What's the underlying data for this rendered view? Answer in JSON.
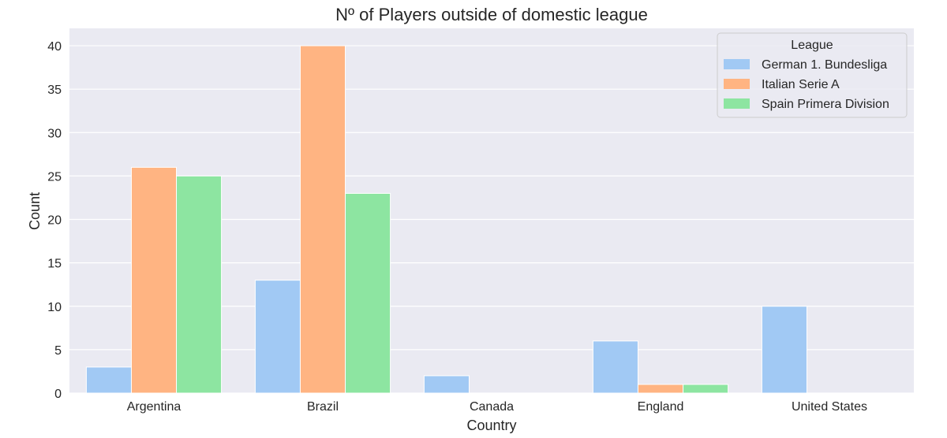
{
  "chart_data": {
    "type": "bar",
    "title": "Nº of Players outside of domestic league",
    "xlabel": "Country",
    "ylabel": "Count",
    "categories": [
      "Argentina",
      "Brazil",
      "Canada",
      "England",
      "United States"
    ],
    "series": [
      {
        "name": "German 1. Bundesliga",
        "color": "#a1c9f4",
        "values": [
          3,
          13,
          2,
          6,
          10
        ]
      },
      {
        "name": "Italian Serie A",
        "color": "#ffb482",
        "values": [
          26,
          40,
          0,
          1,
          0
        ]
      },
      {
        "name": "Spain Primera Division",
        "color": "#8de5a1",
        "values": [
          25,
          23,
          0,
          1,
          0
        ]
      }
    ],
    "ylim": [
      0,
      42
    ],
    "yticks": [
      0,
      5,
      10,
      15,
      20,
      25,
      30,
      35,
      40
    ],
    "grid": true,
    "legend": {
      "title": "League",
      "placement": "top-right"
    },
    "background_color": "#eaeaf2"
  }
}
